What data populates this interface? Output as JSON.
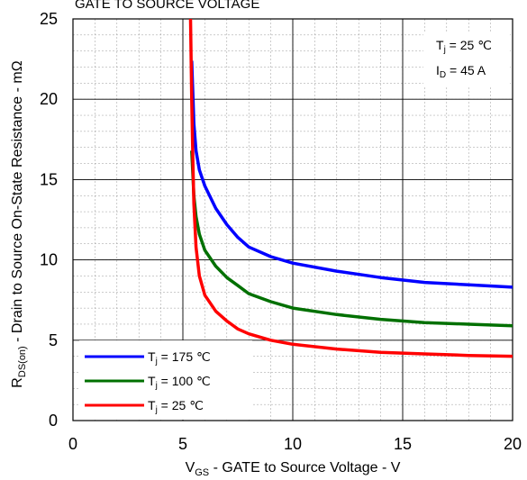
{
  "chart_data": {
    "type": "line",
    "title": "GATE TO SOURCE VOLTAGE",
    "xlabel": {
      "main": "V",
      "sub": "GS",
      "rest": " - GATE to Source Voltage - V"
    },
    "ylabel": {
      "main": "R",
      "sub": "DS(on)",
      "rest": " - Drain to Source On-State Resistance - mΩ"
    },
    "xlim": [
      0,
      20
    ],
    "ylim": [
      0,
      25
    ],
    "x_ticks": [
      0,
      5,
      10,
      15,
      20
    ],
    "y_ticks": [
      0,
      5,
      10,
      15,
      20,
      25
    ],
    "x_minor_step": 1,
    "y_minor_step": 1,
    "grid": true,
    "legend_position": "bottom-left",
    "annotations": [
      {
        "main": "T",
        "sub": "j",
        "rest": " = 25 ℃"
      },
      {
        "main": "I",
        "sub": "D",
        "rest": " = 45 A"
      }
    ],
    "series": [
      {
        "name": {
          "main": "T",
          "sub": "j",
          "rest": " = 175 ℃"
        },
        "color": "#0000ff",
        "x": [
          5.4,
          5.45,
          5.5,
          5.6,
          5.75,
          6.0,
          6.5,
          7.0,
          7.5,
          8.0,
          9.0,
          10.0,
          12.0,
          14.0,
          16.0,
          18.0,
          20.0
        ],
        "y": [
          22.4,
          20.5,
          18.5,
          16.8,
          15.6,
          14.6,
          13.2,
          12.2,
          11.4,
          10.8,
          10.2,
          9.8,
          9.3,
          8.9,
          8.6,
          8.45,
          8.3
        ]
      },
      {
        "name": {
          "main": "T",
          "sub": "j",
          "rest": " = 100 ℃"
        },
        "color": "#007000",
        "x": [
          5.4,
          5.45,
          5.5,
          5.6,
          5.75,
          6.0,
          6.5,
          7.0,
          7.5,
          8.0,
          9.0,
          10.0,
          12.0,
          14.0,
          16.0,
          18.0,
          20.0
        ],
        "y": [
          16.8,
          15.4,
          14.0,
          12.7,
          11.6,
          10.6,
          9.6,
          8.9,
          8.4,
          7.9,
          7.4,
          7.0,
          6.6,
          6.3,
          6.1,
          6.0,
          5.9
        ]
      },
      {
        "name": {
          "main": "T",
          "sub": "j",
          "rest": " = 25 ℃"
        },
        "color": "#ff0000",
        "x": [
          5.35,
          5.4,
          5.45,
          5.5,
          5.6,
          5.75,
          6.0,
          6.5,
          7.0,
          7.5,
          8.0,
          9.0,
          10.0,
          12.0,
          14.0,
          16.0,
          18.0,
          20.0
        ],
        "y": [
          25.0,
          20.0,
          16.5,
          13.5,
          10.8,
          9.0,
          7.8,
          6.8,
          6.2,
          5.7,
          5.4,
          5.0,
          4.75,
          4.45,
          4.25,
          4.15,
          4.05,
          4.0
        ]
      }
    ]
  }
}
